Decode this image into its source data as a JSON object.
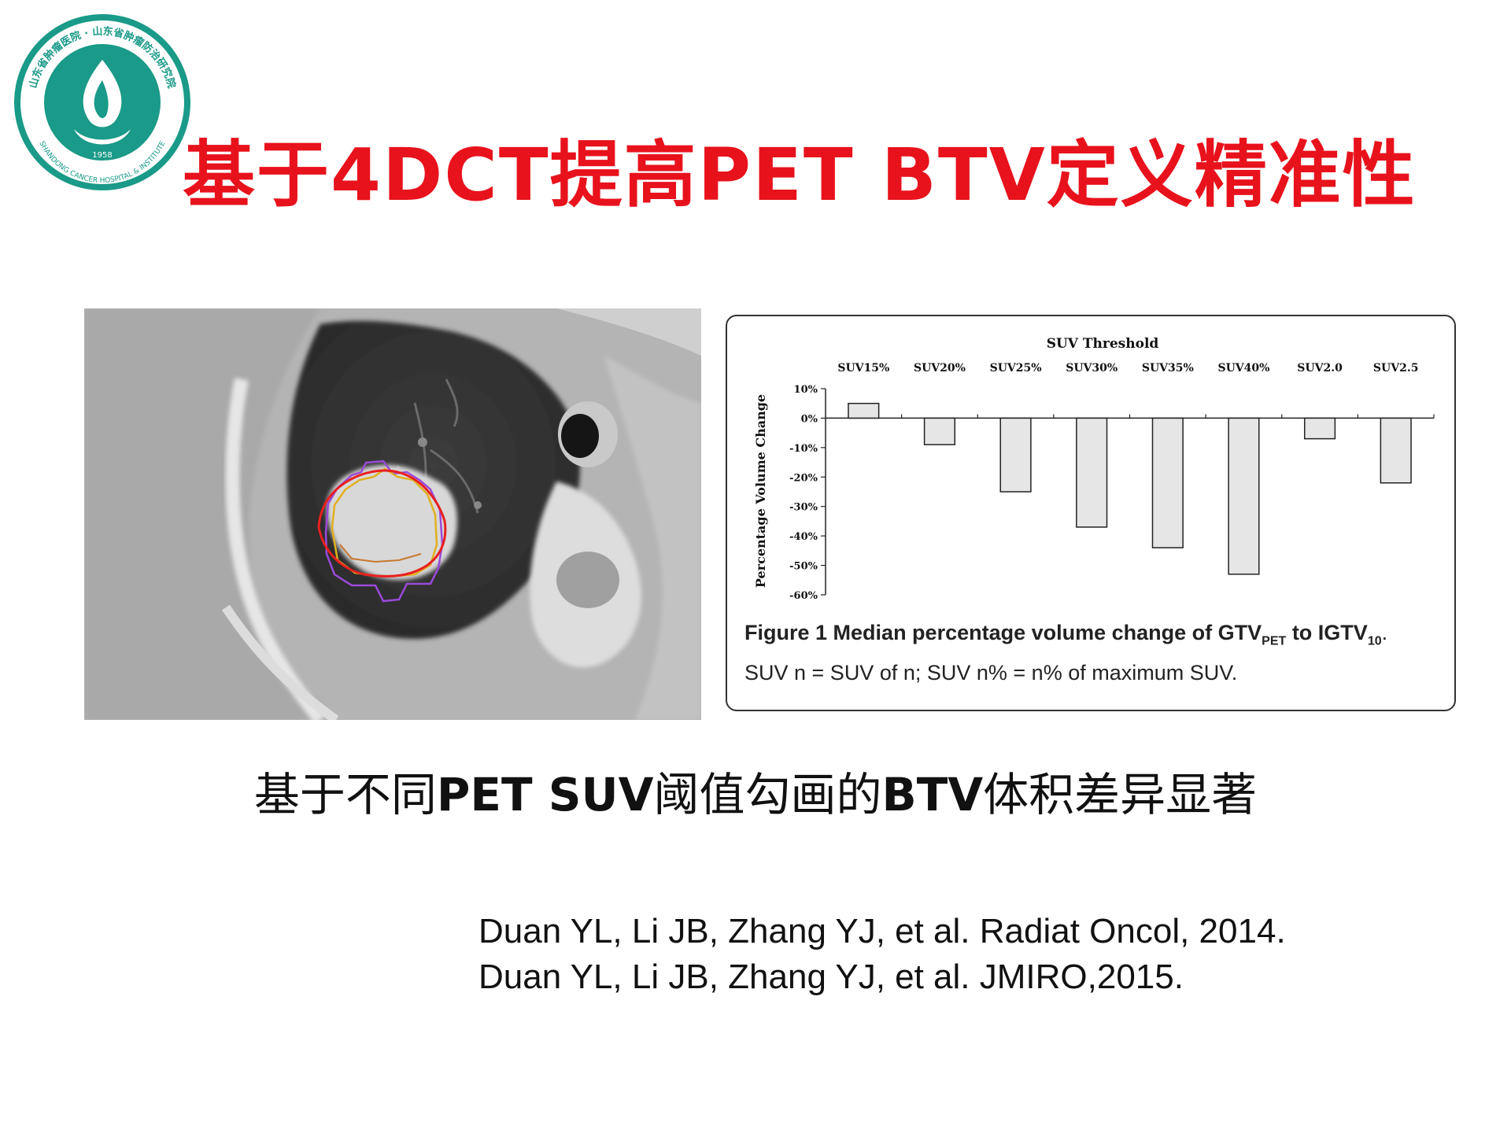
{
  "logo": {
    "ring_text": "山东省肿瘤医院 · 山东省肿瘤防治研究院",
    "bottom_text": "SHANDONG CANCER HOSPITAL & INSTITUTE",
    "year": "1958",
    "color": "#1a9a88"
  },
  "title": "基于4DCT提高PET BTV定义精准性",
  "title_color": "#e8121c",
  "figure_caption": {
    "label": "Figure 1",
    "text_a": "Median percentage volume change of GTV",
    "sub_pet": "PET",
    "text_b": "to IGTV",
    "sub_10": "10",
    "text_c": ". SUV n = SUV of n; SUV n% = n% of maximum SUV."
  },
  "chart_data": {
    "type": "bar",
    "title": "SUV Threshold",
    "xlabel": "",
    "ylabel": "Percentage Volume Change",
    "categories": [
      "SUV15%",
      "SUV20%",
      "SUV25%",
      "SUV30%",
      "SUV35%",
      "SUV40%",
      "SUV2.0",
      "SUV2.5"
    ],
    "values": [
      5,
      -9,
      -25,
      -37,
      -44,
      -53,
      -7,
      -22
    ],
    "ylim": [
      -60,
      10
    ],
    "yticks": [
      10,
      0,
      -10,
      -20,
      -30,
      -40,
      -50,
      -60
    ],
    "ytick_labels": [
      "10%",
      "0%",
      "-10%",
      "-20%",
      "-30%",
      "-40%",
      "-50%",
      "-60%"
    ],
    "category_axis_position": "top",
    "grid": false,
    "legend": "none",
    "bar_color": "#e6e6e6"
  },
  "subtitle": {
    "part1": "基于不同",
    "part2": "PET SUV",
    "part3": "阈值勾画的",
    "part4": "BTV",
    "part5": "体积差异显著"
  },
  "references": [
    "Duan YL, Li JB, Zhang YJ, et al. Radiat Oncol, 2014.",
    "Duan YL, Li JB, Zhang YJ, et al. JMIRO,2015."
  ]
}
